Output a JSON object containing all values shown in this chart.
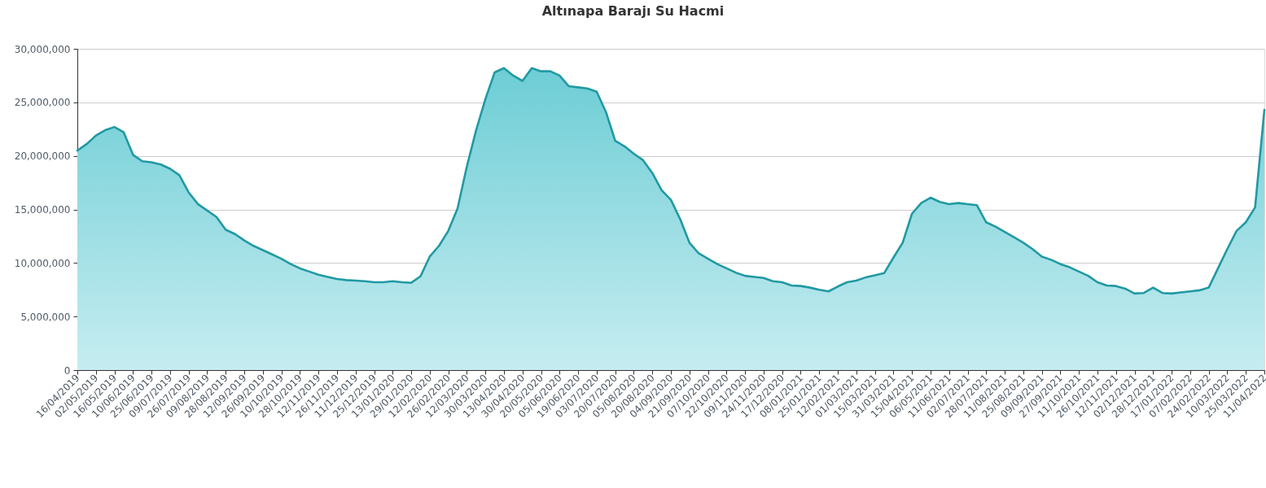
{
  "chart_data": {
    "type": "area",
    "title": "Altınapa Barajı Su Hacmi",
    "categories": [
      "16/04/2019",
      null,
      "02/05/2019",
      null,
      "16/05/2019",
      null,
      "10/06/2019",
      null,
      "25/06/2019",
      null,
      "09/07/2019",
      null,
      "26/07/2019",
      null,
      "09/08/2019",
      null,
      "28/08/2019",
      null,
      "12/09/2019",
      null,
      "26/09/2019",
      null,
      "10/10/2019",
      null,
      "28/10/2019",
      null,
      "12/11/2019",
      null,
      "26/11/2019",
      null,
      "11/12/2019",
      null,
      "25/12/2019",
      null,
      "13/01/2020",
      null,
      "29/01/2020",
      null,
      "12/02/2020",
      null,
      "26/02/2020",
      null,
      "12/03/2020",
      null,
      "30/03/2020",
      null,
      "13/04/2020",
      null,
      "30/04/2020",
      null,
      "20/05/2020",
      null,
      "05/06/2020",
      null,
      "19/06/2020",
      null,
      "03/07/2020",
      null,
      "20/07/2020",
      null,
      "05/08/2020",
      null,
      "20/08/2020",
      null,
      "04/09/2020",
      null,
      "21/09/2020",
      null,
      "07/10/2020",
      null,
      "22/10/2020",
      null,
      "09/11/2020",
      null,
      "24/11/2020",
      null,
      "17/12/2020",
      null,
      "08/01/2021",
      null,
      "25/01/2021",
      null,
      "12/02/2021",
      null,
      "01/03/2021",
      null,
      "15/03/2021",
      null,
      "31/03/2021",
      null,
      "15/04/2021",
      null,
      "06/05/2021",
      null,
      "11/06/2021",
      null,
      "02/07/2021",
      null,
      "28/07/2021",
      null,
      "11/08/2021",
      null,
      "25/08/2021",
      null,
      "09/09/2021",
      null,
      "27/09/2021",
      null,
      "11/10/2021",
      null,
      "26/10/2021",
      null,
      "12/11/2021",
      null,
      "02/12/2021",
      null,
      "28/12/2021",
      null,
      "17/01/2022",
      null,
      "07/02/2022",
      null,
      "24/02/2022",
      null,
      "10/03/2022",
      null,
      "25/03/2022",
      null,
      "11/04/2022"
    ],
    "series": [
      {
        "color": "#2199a3",
        "values": [
          20500000,
          21100000,
          21900000,
          22400000,
          22700000,
          22200000,
          20100000,
          19500000,
          19400000,
          19200000,
          18800000,
          18200000,
          16600000,
          15500000,
          14900000,
          14300000,
          13100000,
          12700000,
          12100000,
          11600000,
          11200000,
          10800000,
          10400000,
          9900000,
          9500000,
          9200000,
          8900000,
          8700000,
          8500000,
          8400000,
          8350000,
          8300000,
          8200000,
          8200000,
          8300000,
          8200000,
          8150000,
          8750000,
          10600000,
          11600000,
          13000000,
          15100000,
          19000000,
          22400000,
          25300000,
          27800000,
          28200000,
          27500000,
          27000000,
          28200000,
          27900000,
          27900000,
          27500000,
          26500000,
          26400000,
          26300000,
          26000000,
          24100000,
          21400000,
          20900000,
          20200000,
          19600000,
          18400000,
          16800000,
          15900000,
          14100000,
          11900000,
          10900000,
          10400000,
          9900000,
          9500000,
          9100000,
          8800000,
          8700000,
          8600000,
          8300000,
          8200000,
          7900000,
          7850000,
          7700000,
          7500000,
          7350000,
          7800000,
          8200000,
          8350000,
          8650000,
          8850000,
          9050000,
          10500000,
          11900000,
          14600000,
          15600000,
          16100000,
          15700000,
          15500000,
          15600000,
          15500000,
          15400000,
          13800000,
          13400000,
          12900000,
          12400000,
          11900000,
          11300000,
          10600000,
          10300000,
          9900000,
          9600000,
          9200000,
          8800000,
          8200000,
          7900000,
          7850000,
          7600000,
          7150000,
          7200000,
          7700000,
          7200000,
          7150000,
          7250000,
          7350000,
          7450000,
          7700000,
          9500000,
          11300000,
          13000000,
          13800000,
          15200000,
          24300000
        ]
      }
    ],
    "ylim": [
      0,
      30000000
    ],
    "yticks": [
      {
        "value": 0,
        "label": "0"
      },
      {
        "value": 5000000,
        "label": "5,000,000"
      },
      {
        "value": 10000000,
        "label": "10,000,000"
      },
      {
        "value": 15000000,
        "label": "15,000,000"
      },
      {
        "value": 20000000,
        "label": "20,000,000"
      },
      {
        "value": 25000000,
        "label": "25,000,000"
      },
      {
        "value": 30000000,
        "label": "30,000,000"
      }
    ],
    "grid": "y"
  }
}
